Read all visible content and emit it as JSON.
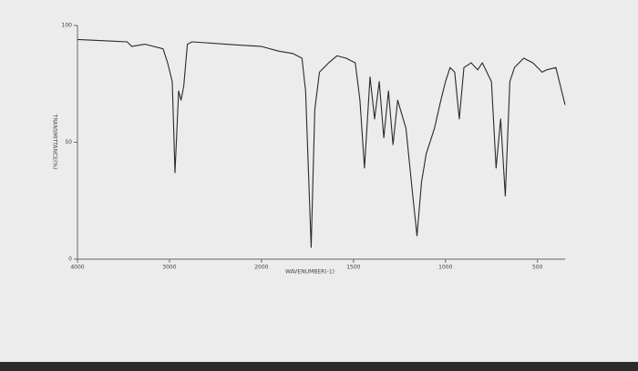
{
  "chart_data": {
    "type": "line",
    "xlabel": "WAVENUMBER(-1)",
    "ylabel": "TRANSMITTANCE(%)",
    "x": [
      4000,
      3460,
      3410,
      3265,
      3070,
      3020,
      2970,
      2940,
      2900,
      2875,
      2845,
      2805,
      2755,
      2390,
      2000,
      1905,
      1830,
      1780,
      1760,
      1730,
      1710,
      1685,
      1635,
      1590,
      1540,
      1490,
      1465,
      1440,
      1410,
      1385,
      1360,
      1335,
      1310,
      1285,
      1260,
      1215,
      1180,
      1155,
      1130,
      1105,
      1060,
      1025,
      1000,
      975,
      950,
      925,
      900,
      860,
      825,
      800,
      750,
      725,
      700,
      675,
      650,
      625,
      575,
      525,
      475,
      450,
      400,
      350
    ],
    "series": [
      {
        "name": "Transmittance",
        "color": "#2a2a2a",
        "values": [
          94,
          93,
          91,
          92,
          90,
          84,
          76,
          37,
          72,
          68,
          74,
          92,
          93,
          92,
          91,
          89,
          88,
          86,
          72,
          5,
          64,
          80,
          84,
          87,
          86,
          84,
          68,
          39,
          78,
          60,
          76,
          52,
          72,
          49,
          68,
          56,
          29,
          10,
          33,
          45,
          56,
          68,
          76,
          82,
          80,
          60,
          82,
          84,
          81,
          84,
          76,
          39,
          60,
          27,
          76,
          82,
          86,
          84,
          80,
          81,
          82,
          66
        ]
      }
    ],
    "xlim": [
      4000,
      350
    ],
    "xticks": [
      4000,
      3000,
      2000,
      1500,
      1000,
      500
    ],
    "ylim": [
      0,
      100
    ],
    "yticks": [
      0,
      50,
      100
    ]
  }
}
